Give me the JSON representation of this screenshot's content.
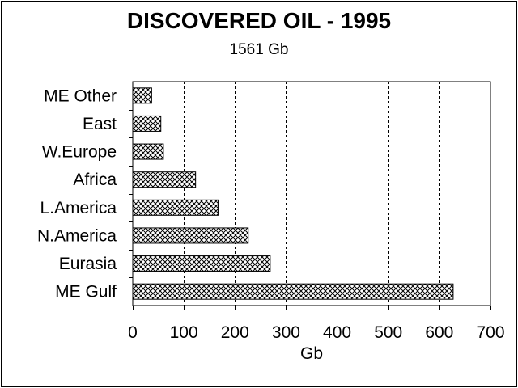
{
  "chart_data": {
    "type": "bar",
    "orientation": "horizontal",
    "title": "DISCOVERED OIL - 1995",
    "subtitle": "1561 Gb",
    "xlabel": "Gb",
    "ylabel": "",
    "xlim": [
      0,
      700
    ],
    "xticks": [
      "0",
      "100",
      "200",
      "300",
      "400",
      "500",
      "600",
      "700"
    ],
    "grid": "vertical dashed",
    "legend": "none",
    "categories": [
      "ME Other",
      "East",
      "W.Europe",
      "Africa",
      "L.America",
      "N.America",
      "Eurasia",
      "ME Gulf"
    ],
    "values": [
      37,
      55,
      60,
      123,
      167,
      226,
      269,
      627
    ],
    "colors": {
      "bar_fill": "#ffffff",
      "bar_pattern": "#000000",
      "axis": "#000000",
      "background": "#ffffff"
    }
  }
}
